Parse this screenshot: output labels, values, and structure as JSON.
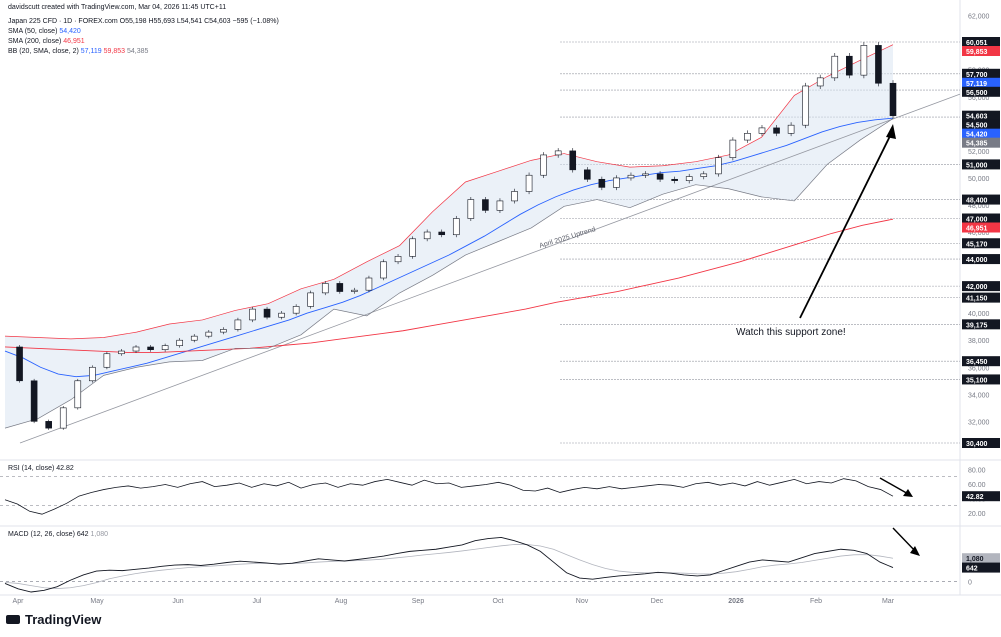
{
  "header": {
    "credit": "davidscutt created with TradingView.com, Mar 04, 2026 11:45 UTC+11",
    "symbol": "Japan 225 CFD · 1D · FOREX.com",
    "ohlc": "O55,198 H55,693 L54,541 C54,603 −595 (−1.08%)",
    "sma50_label": "SMA (50, close)",
    "sma50_value": "54,420",
    "sma200_label": "SMA (200, close)",
    "sma200_value": "46,951",
    "bb_label": "BB (20, SMA, close, 2)",
    "bb_values": [
      "57,119",
      "59,853",
      "54,385"
    ],
    "rsi_label": "RSI (14, close)",
    "rsi_value": "42.82",
    "macd_label": "MACD (12, 26, close)",
    "macd_values": [
      "642",
      "1,080"
    ]
  },
  "brand": "TradingView",
  "colors": {
    "up_candle": "#ffffff",
    "down_candle": "#131722",
    "sma50": "#2962ff",
    "sma200": "#f23645",
    "bb_upper": "#f23645",
    "bb_lower": "#787b86",
    "bb_fill": "#dbe6f2",
    "trendline": "#9598a1",
    "arrow": "#000000"
  },
  "chart_data": {
    "type": "line",
    "instrument": "Japan 225 CFD",
    "x": [
      "Apr",
      "May",
      "Jun",
      "Jul",
      "Aug",
      "Sep",
      "Oct",
      "Nov",
      "Dec",
      "2026",
      "Feb",
      "Mar"
    ],
    "price_axis_ticks": [
      "62,000",
      "58,000",
      "56,000",
      "52,000",
      "50,000",
      "48,000",
      "46,000",
      "44,000",
      "42,000",
      "40,000",
      "38,000",
      "36,000",
      "34,000",
      "32,000"
    ],
    "price_series": [
      {
        "name": "",
        "values": [
          37500,
          35000,
          32000,
          31500,
          33000,
          35000,
          36000,
          37000,
          37200,
          37500,
          37300,
          37600,
          38000,
          38300,
          38600,
          38800,
          39500,
          40300,
          39700,
          40000,
          40500,
          41500,
          42200,
          41600,
          41700,
          42600,
          43800,
          44200,
          45500,
          46000,
          45800,
          47000,
          48400,
          47600,
          48300,
          49000,
          50200,
          51700,
          52000,
          50600,
          49900,
          49300,
          50000,
          50200,
          50300,
          49900,
          49800,
          50100,
          50300,
          51500,
          52800,
          53300,
          53700,
          53300,
          53900,
          56800,
          57400,
          59000,
          57600,
          59800,
          57000,
          54603
        ]
      },
      {
        "name": "SMA (50, close)",
        "values": [
          37200,
          36700,
          36000,
          35500,
          35300,
          35400,
          35700,
          36000,
          36300,
          36700,
          37100,
          37500,
          37900,
          38300,
          38700,
          39100,
          39500,
          40000,
          40400,
          40800,
          41300,
          41900,
          42500,
          43100,
          43700,
          44300,
          45000,
          45700,
          46500,
          47300,
          48000,
          48600,
          49100,
          49500,
          49800,
          50000,
          50200,
          50400,
          50500,
          50700,
          50900,
          51200,
          51600,
          52000,
          52400,
          52900,
          53400,
          53800,
          54100,
          54300,
          54420
        ]
      },
      {
        "name": "SMA (200, close)",
        "values": [
          37500,
          37400,
          37300,
          37200,
          37100,
          37100,
          37200,
          37300,
          37400,
          37600,
          37800,
          38100,
          38400,
          38700,
          39100,
          39500,
          39900,
          40300,
          40800,
          41200,
          41600,
          42100,
          42600,
          43200,
          43800,
          44500,
          45200,
          45900,
          46500,
          46951
        ]
      },
      {
        "name": "BB (20, SMA, close, 2)",
        "values": [
          38300,
          38200,
          38100,
          38200,
          38600,
          39200,
          39500,
          40200,
          40700,
          41800,
          42500,
          43800,
          45000,
          47500,
          49700,
          50500,
          51300,
          51800,
          51200,
          50800,
          50900,
          51200,
          51700,
          53000,
          56100,
          57500,
          58700,
          59853
        ]
      },
      {
        "name": "BB (20, SMA, close, 2)",
        "values": [
          31500,
          32200,
          33600,
          35400,
          36000,
          36400,
          36500,
          37400,
          37400,
          38400,
          40300,
          39800,
          41500,
          42800,
          44300,
          45300,
          46300,
          47900,
          48400,
          47800,
          48800,
          49500,
          49200,
          48600,
          48300,
          51000,
          52800,
          54385
        ]
      }
    ],
    "price_labels": [
      {
        "text": "60,051",
        "value": 60051
      },
      {
        "text": "59,853",
        "value": 59853
      },
      {
        "text": "57,700",
        "value": 57700
      },
      {
        "text": "57,119",
        "value": 57119
      },
      {
        "text": "56,500",
        "value": 56500
      },
      {
        "text": "54,603",
        "value": 54603
      },
      {
        "text": "54,500",
        "value": 54500
      },
      {
        "text": "54,420",
        "value": 54420
      },
      {
        "text": "54,385",
        "value": 54385
      },
      {
        "text": "51,000",
        "value": 51000
      },
      {
        "text": "48,400",
        "value": 48400
      },
      {
        "text": "47,000",
        "value": 47000
      },
      {
        "text": "46,951",
        "value": 46951
      },
      {
        "text": "45,170",
        "value": 45170
      },
      {
        "text": "44,000",
        "value": 44000
      },
      {
        "text": "42,000",
        "value": 42000
      },
      {
        "text": "41,150",
        "value": 41150
      },
      {
        "text": "39,175",
        "value": 39175
      },
      {
        "text": "36,450",
        "value": 36450
      },
      {
        "text": "35,100",
        "value": 35100
      },
      {
        "text": "30,400",
        "value": 30400
      }
    ],
    "support_levels": [
      60051,
      57700,
      56500,
      54500,
      51000,
      48400,
      47000,
      45170,
      44000,
      42000,
      41150,
      39175,
      36450,
      35100,
      30400
    ],
    "trendline": {
      "label": "April 2025 Uptrend",
      "start": 30400,
      "end": 54500
    },
    "annotation": "Watch this support zone!",
    "rsi": {
      "ticks": [
        "80.00",
        "60.00",
        "40.00",
        "20.00"
      ],
      "ylim": [
        10,
        90
      ],
      "levels": [
        70,
        30
      ],
      "values": [
        38,
        32,
        22,
        18,
        25,
        33,
        43,
        48,
        52,
        55,
        57,
        54,
        56,
        59,
        55,
        60,
        63,
        56,
        58,
        61,
        55,
        60,
        57,
        62,
        54,
        59,
        61,
        55,
        60,
        58,
        63,
        66,
        62,
        58,
        65,
        60,
        61,
        55,
        57,
        59,
        62,
        58,
        51,
        50,
        54,
        48,
        52,
        55,
        53,
        56,
        53,
        55,
        57,
        59,
        58,
        55,
        60,
        62,
        58,
        61,
        57,
        63,
        58,
        62,
        66,
        60,
        63,
        61,
        67,
        64,
        56,
        52,
        42.82
      ]
    },
    "macd": {
      "ticks": [
        "0"
      ],
      "ylim": [
        -500,
        2400
      ],
      "macd_line": [
        -100,
        -350,
        -500,
        -420,
        -250,
        50,
        300,
        480,
        520,
        500,
        560,
        620,
        700,
        760,
        780,
        740,
        800,
        880,
        940,
        900,
        860,
        800,
        850,
        950,
        1050,
        1000,
        950,
        1020,
        1100,
        1180,
        1300,
        1400,
        1450,
        1500,
        1600,
        1700,
        1900,
        2000,
        2050,
        1900,
        1700,
        1400,
        900,
        400,
        150,
        100,
        180,
        250,
        300,
        350,
        420,
        380,
        300,
        250,
        300,
        500,
        700,
        900,
        1000,
        950,
        900,
        1100,
        1300,
        1400,
        1500,
        1450,
        1300,
        900,
        642
      ],
      "signal_line": [
        -50,
        -100,
        -200,
        -300,
        -340,
        -300,
        -200,
        -60,
        120,
        250,
        360,
        450,
        520,
        580,
        640,
        680,
        720,
        760,
        800,
        830,
        840,
        830,
        830,
        860,
        900,
        930,
        950,
        970,
        1000,
        1040,
        1100,
        1160,
        1230,
        1290,
        1350,
        1420,
        1500,
        1580,
        1660,
        1720,
        1720,
        1650,
        1500,
        1250,
        1000,
        780,
        600,
        480,
        420,
        400,
        400,
        400,
        380,
        350,
        340,
        380,
        450,
        560,
        680,
        760,
        810,
        880,
        980,
        1080,
        1180,
        1240,
        1250,
        1180,
        1080
      ],
      "labels": [
        "1,080",
        "642"
      ]
    }
  }
}
